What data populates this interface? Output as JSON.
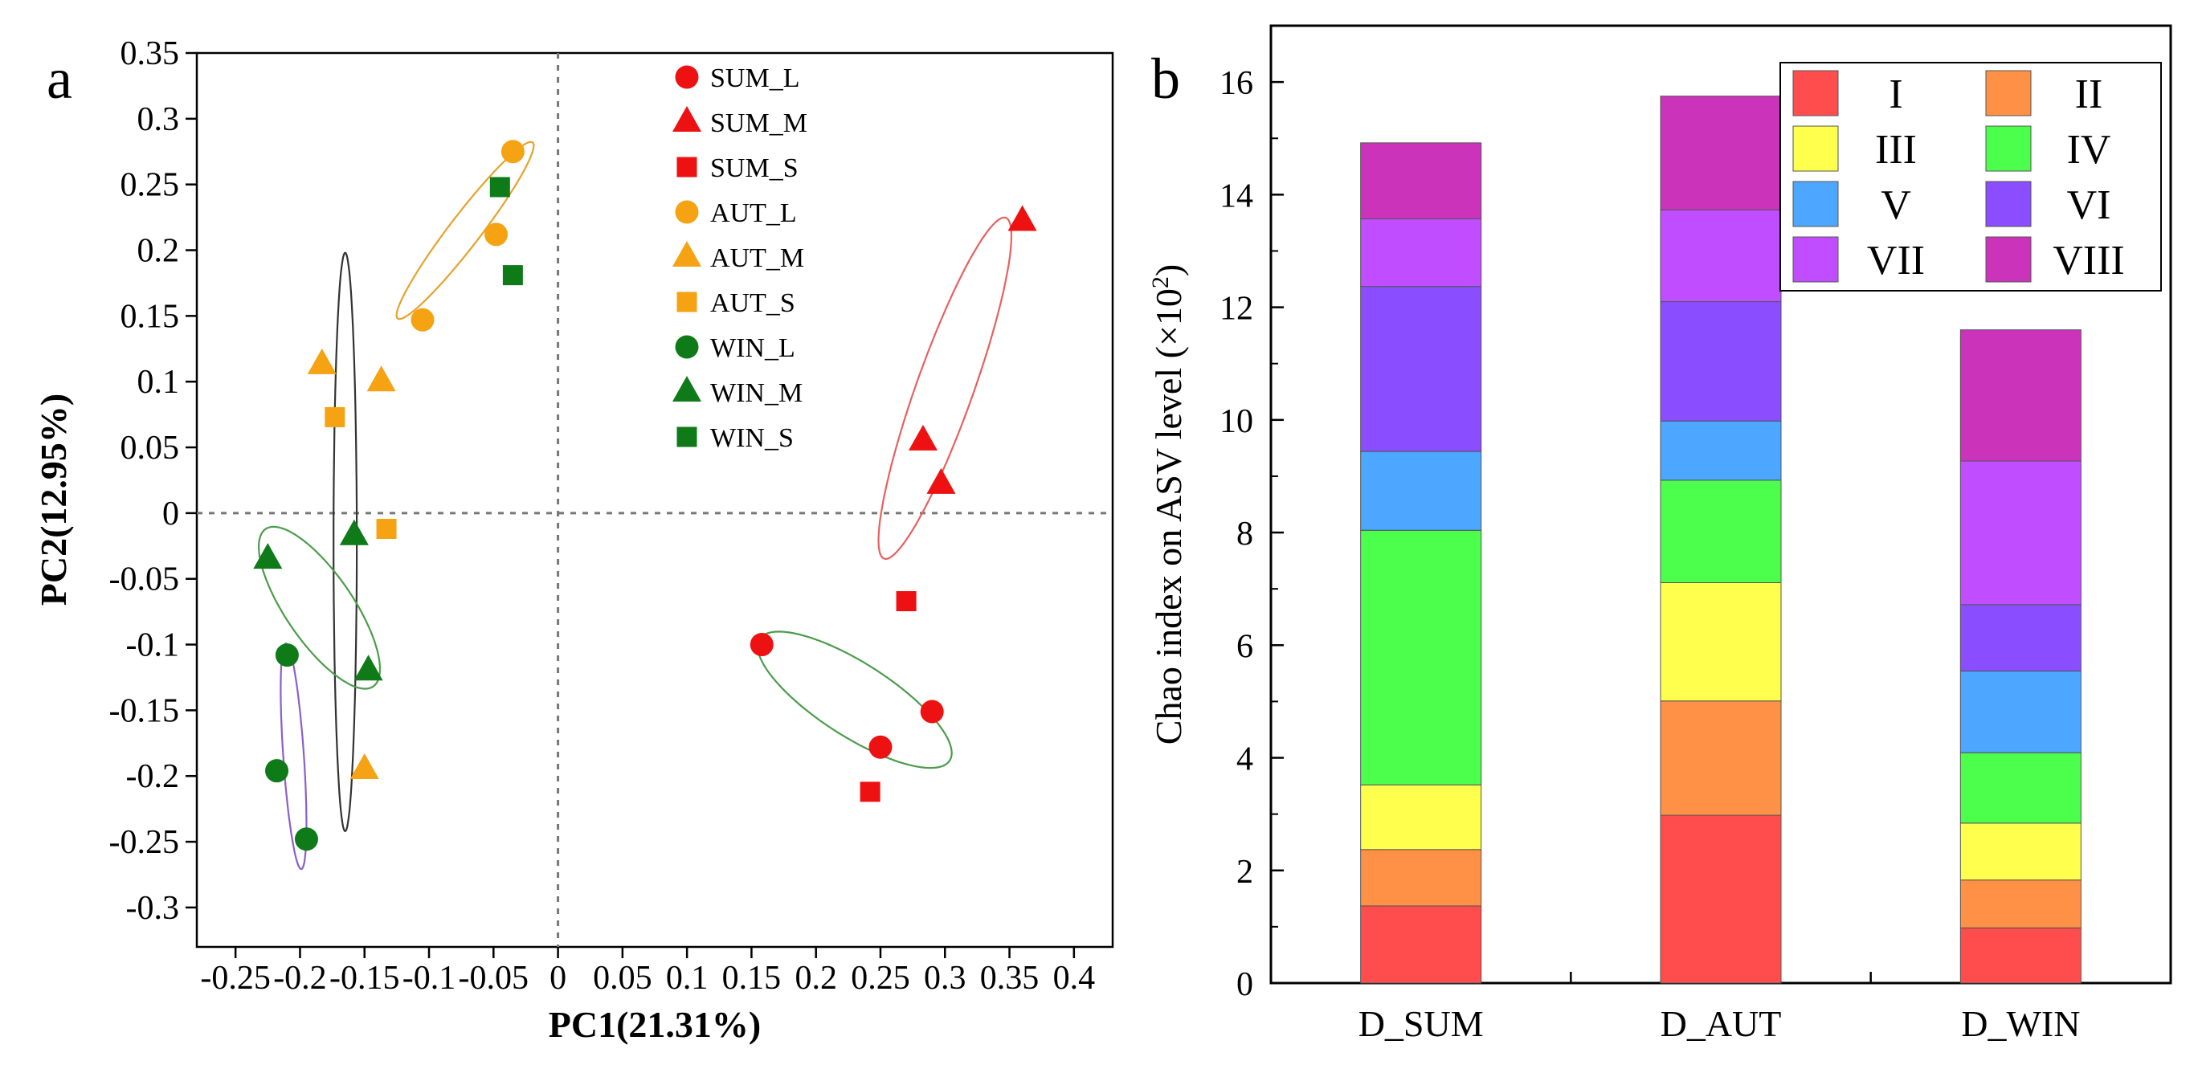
{
  "chart_data": [
    {
      "type": "scatter",
      "panel_label": "a",
      "xlabel": "PC1(21.31%)",
      "ylabel": "PC2(12.95%)",
      "xlim": [
        -0.28,
        0.43
      ],
      "ylim": [
        -0.33,
        0.35
      ],
      "x_ticks": [
        -0.25,
        -0.2,
        -0.15,
        -0.1,
        -0.05,
        0,
        0.05,
        0.1,
        0.15,
        0.2,
        0.25,
        0.3,
        0.35,
        0.4
      ],
      "x_tick_labels": [
        "-0.25",
        "-0.2",
        "-0.15",
        "-0.1",
        "-0.05",
        "0",
        "0.05",
        "0.1",
        "0.15",
        "0.2",
        "0.25",
        "0.3",
        "0.35",
        "0.4"
      ],
      "y_ticks": [
        0.35,
        0.3,
        0.25,
        0.2,
        0.15,
        0.1,
        0.05,
        0,
        -0.05,
        -0.1,
        -0.15,
        -0.2,
        -0.25,
        -0.3
      ],
      "y_tick_labels": [
        "0.35",
        "0.3",
        "0.25",
        "0.2",
        "0.15",
        "0.1",
        "0.05",
        "0",
        "-0.05",
        "-0.1",
        "-0.15",
        "-0.2",
        "-0.25",
        "-0.3"
      ],
      "reference_lines": {
        "x": 0,
        "y": 0,
        "style": "dotted"
      },
      "series": [
        {
          "name": "SUM_L",
          "color": "#ee1111",
          "marker": "circle",
          "points": [
            [
              0.158,
              -0.1
            ],
            [
              0.25,
              -0.178
            ],
            [
              0.29,
              -0.151
            ]
          ]
        },
        {
          "name": "SUM_M",
          "color": "#ee1111",
          "marker": "triangle",
          "points": [
            [
              0.36,
              0.222
            ],
            [
              0.283,
              0.055
            ],
            [
              0.297,
              0.022
            ]
          ]
        },
        {
          "name": "SUM_S",
          "color": "#ee1111",
          "marker": "square",
          "points": [
            [
              0.27,
              -0.067
            ],
            [
              0.242,
              -0.212
            ]
          ]
        },
        {
          "name": "AUT_L",
          "color": "#f5a213",
          "marker": "circle",
          "points": [
            [
              -0.035,
              0.275
            ],
            [
              -0.048,
              0.212
            ],
            [
              -0.105,
              0.147
            ]
          ]
        },
        {
          "name": "AUT_M",
          "color": "#f5a213",
          "marker": "triangle",
          "points": [
            [
              -0.183,
              0.113
            ],
            [
              -0.137,
              0.1
            ],
            [
              -0.15,
              -0.195
            ]
          ]
        },
        {
          "name": "AUT_S",
          "color": "#f5a213",
          "marker": "square",
          "points": [
            [
              -0.173,
              0.073
            ],
            [
              -0.133,
              -0.012
            ]
          ]
        },
        {
          "name": "WIN_L",
          "color": "#0e7a18",
          "marker": "circle",
          "points": [
            [
              -0.21,
              -0.108
            ],
            [
              -0.218,
              -0.196
            ],
            [
              -0.195,
              -0.248
            ]
          ]
        },
        {
          "name": "WIN_M",
          "color": "#0e7a18",
          "marker": "triangle",
          "points": [
            [
              -0.225,
              -0.035
            ],
            [
              -0.158,
              -0.017
            ],
            [
              -0.147,
              -0.12
            ]
          ]
        },
        {
          "name": "WIN_S",
          "color": "#0e7a18",
          "marker": "square",
          "points": [
            [
              -0.045,
              0.248
            ],
            [
              -0.035,
              0.181
            ]
          ]
        }
      ],
      "ellipses": [
        {
          "color": "#e86060",
          "cx": 0.3,
          "cy": 0.095,
          "rx": 0.138,
          "ry": 0.022,
          "angle_deg": 70
        },
        {
          "color": "#4b9c4b",
          "cx": 0.23,
          "cy": -0.142,
          "rx": 0.087,
          "ry": 0.028,
          "angle_deg": -32
        },
        {
          "color": "#e6a22a",
          "cx": -0.072,
          "cy": 0.215,
          "rx": 0.085,
          "ry": 0.012,
          "angle_deg": 52
        },
        {
          "color": "#333333",
          "cx": -0.165,
          "cy": -0.022,
          "rx": 0.009,
          "ry": 0.22,
          "angle_deg": 0
        },
        {
          "color": "#4b9c4b",
          "cx": -0.185,
          "cy": -0.072,
          "rx": 0.073,
          "ry": 0.026,
          "angle_deg": -55
        },
        {
          "color": "#8a5fc9",
          "cx": -0.205,
          "cy": -0.185,
          "rx": 0.086,
          "ry": 0.008,
          "angle_deg": -86
        }
      ]
    },
    {
      "type": "bar",
      "stacked": true,
      "panel_label": "b",
      "xlabel": "",
      "ylabel": "Chao index on ASV level (×10",
      "ylabel_superscript": "2",
      "ylabel_close": ")",
      "categories": [
        "D_SUM",
        "D_AUT",
        "D_WIN"
      ],
      "ylim": [
        0,
        17
      ],
      "y_ticks": [
        0,
        2,
        4,
        6,
        8,
        10,
        12,
        14,
        16
      ],
      "y_tick_labels": [
        "0",
        "2",
        "4",
        "6",
        "8",
        "10",
        "12",
        "14",
        "16"
      ],
      "legend_position": "top-right",
      "series": [
        {
          "name": "I",
          "color": "#ff4d4d",
          "values": [
            1.37,
            2.98,
            0.98
          ]
        },
        {
          "name": "II",
          "color": "#ff9147",
          "values": [
            1.0,
            2.03,
            0.85
          ]
        },
        {
          "name": "III",
          "color": "#ffff4d",
          "values": [
            1.15,
            2.1,
            1.01
          ]
        },
        {
          "name": "IV",
          "color": "#4dff4d",
          "values": [
            4.52,
            1.82,
            1.25
          ]
        },
        {
          "name": "V",
          "color": "#4da6ff",
          "values": [
            1.4,
            1.05,
            1.45
          ]
        },
        {
          "name": "VI",
          "color": "#8a4dff",
          "values": [
            2.93,
            2.12,
            1.18
          ]
        },
        {
          "name": "VII",
          "color": "#c04dff",
          "values": [
            1.2,
            1.63,
            2.55
          ]
        },
        {
          "name": "VIII",
          "color": "#cc33bb",
          "values": [
            1.35,
            2.02,
            2.33
          ]
        }
      ]
    }
  ]
}
